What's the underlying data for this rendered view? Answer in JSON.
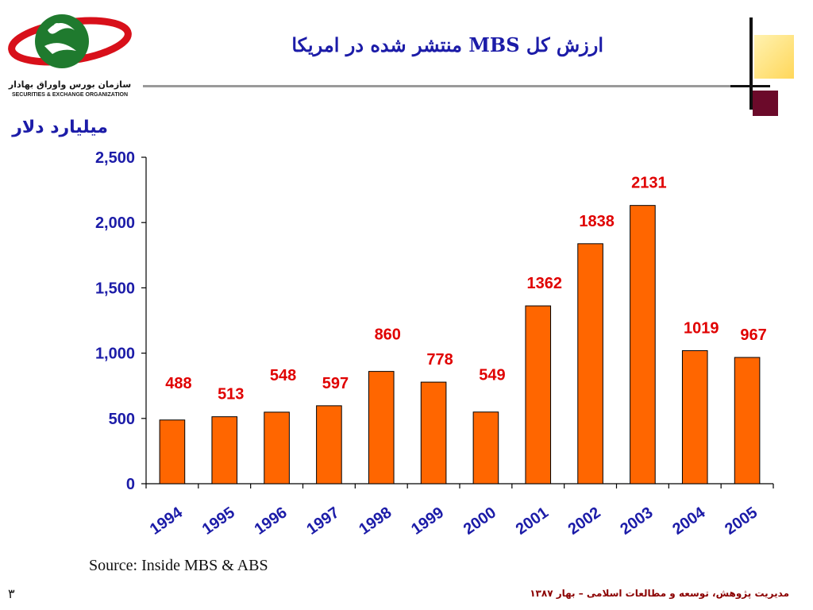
{
  "logo": {
    "text_fa": "سازمان بورس واوراق بهادار",
    "text_en": "SECURITIES & EXCHANGE ORGANIZATION"
  },
  "slide": {
    "title": "ارزش کل MBS منتشر شده در امریکا",
    "unit_label": "میلیارد دلار",
    "source": "Source:  Inside MBS & ABS",
    "footer": "مدیریت پژوهش، توسعه و مطالعات اسلامی – بهار ۱۳۸۷",
    "page_number": "۳"
  },
  "colors": {
    "bar": "#ff6600",
    "data_label": "#e00000",
    "axis_text": "#1c1ca8",
    "title": "#1c1ca8"
  },
  "chart_data": {
    "type": "bar",
    "categories": [
      "1994",
      "1995",
      "1996",
      "1997",
      "1998",
      "1999",
      "2000",
      "2001",
      "2002",
      "2003",
      "2004",
      "2005"
    ],
    "values": [
      488,
      513,
      548,
      597,
      860,
      778,
      549,
      1362,
      1838,
      2131,
      1019,
      967
    ],
    "data_labels": [
      "488",
      "513",
      "548",
      "597",
      "860",
      "778",
      "549",
      "1362",
      "1838",
      "2131",
      "1019",
      "967"
    ],
    "ylim": [
      0,
      2500
    ],
    "yticks": [
      0,
      500,
      1000,
      1500,
      2000,
      2500
    ],
    "ytick_labels": [
      "0",
      "500",
      "1,000",
      "1,500",
      "2,000",
      "2,500"
    ],
    "grid": false,
    "legend": "none"
  }
}
